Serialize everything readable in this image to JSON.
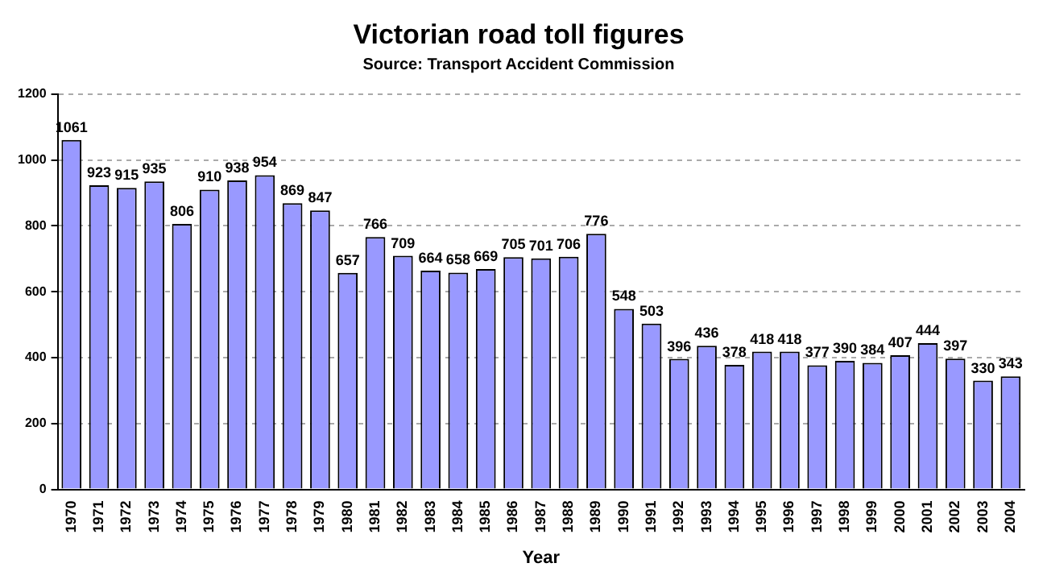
{
  "chart_data": {
    "type": "bar",
    "title": "Victorian road toll figures",
    "subtitle": "Source: Transport Accident Commission",
    "xlabel": "Year",
    "categories": [
      "1970",
      "1971",
      "1972",
      "1973",
      "1974",
      "1975",
      "1976",
      "1977",
      "1978",
      "1979",
      "1980",
      "1981",
      "1982",
      "1983",
      "1984",
      "1985",
      "1986",
      "1987",
      "1988",
      "1989",
      "1990",
      "1991",
      "1992",
      "1993",
      "1994",
      "1995",
      "1996",
      "1997",
      "1998",
      "1999",
      "2000",
      "2001",
      "2002",
      "2003",
      "2004"
    ],
    "values": [
      1061,
      923,
      915,
      935,
      806,
      910,
      938,
      954,
      869,
      847,
      657,
      766,
      709,
      664,
      658,
      669,
      705,
      701,
      706,
      776,
      548,
      503,
      396,
      436,
      378,
      418,
      418,
      377,
      390,
      384,
      407,
      444,
      397,
      330,
      343
    ],
    "color": "#9999ff",
    "ylim": [
      0,
      1200
    ],
    "yticks": [
      0,
      200,
      400,
      600,
      800,
      1000,
      1200
    ],
    "grid": "y",
    "data_labels": true,
    "legend": false
  }
}
